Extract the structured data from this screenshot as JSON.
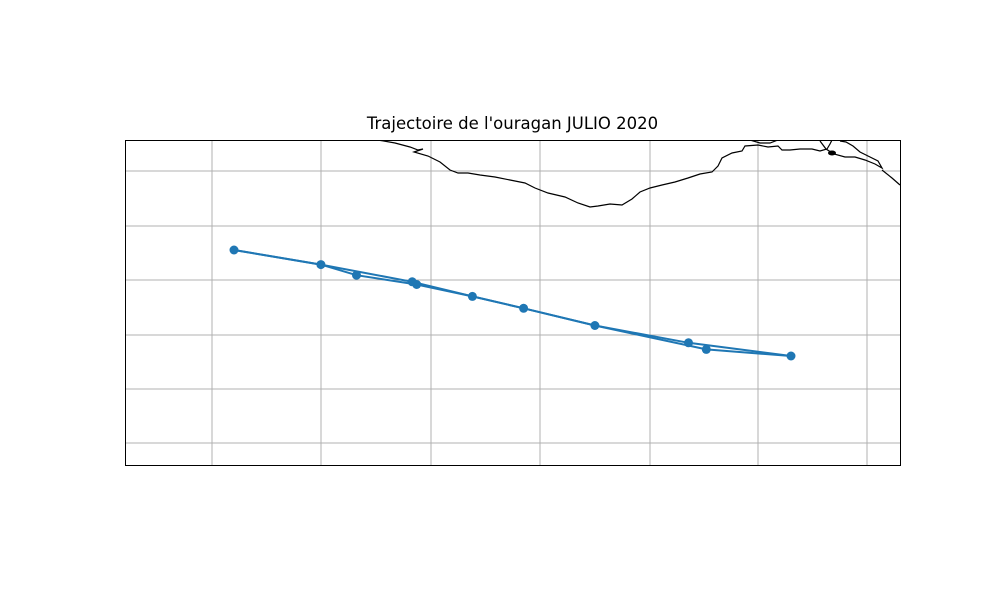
{
  "title": "Trajectoire de l'ouragan JULIO 2020",
  "colors": {
    "track": "#1f77b4",
    "grid": "#b0b0b0",
    "coast": "#000000",
    "frame": "#000000"
  },
  "map": {
    "grid": true,
    "show_tick_labels": false,
    "coastline": true
  },
  "track": {
    "outbound": [
      {
        "lon": -98.0,
        "lat": 15.0
      },
      {
        "lon": -102.6,
        "lat": 14.5
      },
      {
        "lon": -106.8,
        "lat": 13.85
      },
      {
        "lon": -110.0,
        "lat": 13.2
      },
      {
        "lon": -112.3,
        "lat": 12.75
      },
      {
        "lon": -114.8,
        "lat": 12.3
      },
      {
        "lon": -117.5,
        "lat": 11.95
      },
      {
        "lon": -119.1,
        "lat": 11.55
      },
      {
        "lon": -123.0,
        "lat": 11.0
      }
    ],
    "return": [
      {
        "lon": -123.0,
        "lat": 11.0
      },
      {
        "lon": -119.1,
        "lat": 11.55
      },
      {
        "lon": -115.0,
        "lat": 12.2
      },
      {
        "lon": -112.3,
        "lat": 12.75
      },
      {
        "lon": -110.0,
        "lat": 13.2
      },
      {
        "lon": -106.8,
        "lat": 13.85
      },
      {
        "lon": -101.8,
        "lat": 14.75
      },
      {
        "lon": -98.0,
        "lat": 15.0
      }
    ]
  }
}
